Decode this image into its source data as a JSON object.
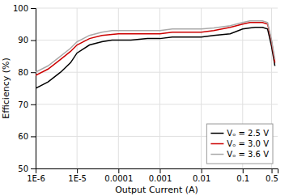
{
  "chart_data": {
    "type": "line",
    "xlabel": "Output Current (A)",
    "ylabel": "Efficiency (%)",
    "log": "x",
    "grid": true,
    "legend": "lower right",
    "xlim": [
      1e-06,
      0.7
    ],
    "ylim": [
      50,
      100
    ],
    "yticks": [
      50,
      60,
      70,
      80,
      90,
      100
    ],
    "xticks": [
      {
        "value": 1e-06,
        "label": "1E-6"
      },
      {
        "value": 1e-05,
        "label": "1E-5"
      },
      0.0001,
      0.001,
      0.01,
      0.1,
      0.5
    ],
    "x": [
      1e-06,
      2e-06,
      4e-06,
      7e-06,
      1e-05,
      2e-05,
      4e-05,
      7e-05,
      0.0001,
      0.0002,
      0.0005,
      0.001,
      0.002,
      0.005,
      0.01,
      0.02,
      0.05,
      0.1,
      0.15,
      0.2,
      0.3,
      0.4,
      0.5,
      0.6
    ],
    "series": [
      {
        "name": "Vₒ = 2.5 V",
        "color": "#000000",
        "values": [
          75,
          77,
          80,
          83,
          86,
          88.5,
          89.5,
          90,
          90,
          90,
          90.5,
          90.5,
          91,
          91,
          91,
          91.5,
          92,
          93.5,
          93.8,
          94,
          94,
          93.5,
          88,
          82
        ]
      },
      {
        "name": "Vₒ = 3.0 V",
        "color": "#cc0000",
        "values": [
          79,
          81,
          84,
          86.5,
          88.5,
          90.5,
          91.5,
          91.8,
          92,
          92,
          92,
          92,
          92.5,
          92.5,
          92.5,
          93,
          94,
          95,
          95.5,
          95.5,
          95.5,
          95,
          89.5,
          83
        ]
      },
      {
        "name": "Vₒ = 3.6 V",
        "color": "#aaaaaa",
        "values": [
          80,
          82,
          85,
          87.5,
          89.5,
          91.5,
          92.5,
          93,
          93,
          93,
          93,
          93,
          93.5,
          93.5,
          93.5,
          93.8,
          94.5,
          95.5,
          96,
          96,
          96,
          95.5,
          90,
          84
        ]
      }
    ]
  }
}
